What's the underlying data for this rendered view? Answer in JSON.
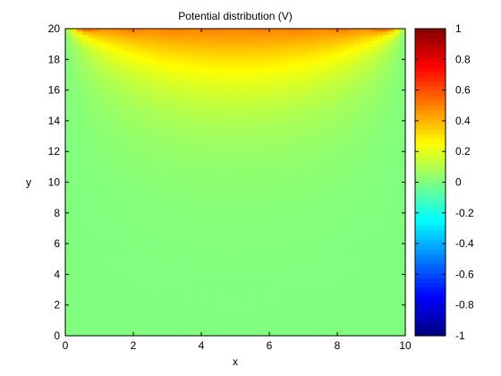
{
  "chart_data": {
    "type": "heatmap",
    "title": "Potential distribution (V)",
    "xlabel": "x",
    "ylabel": "y",
    "xlim": [
      0,
      10
    ],
    "ylim": [
      0,
      20
    ],
    "x_ticks": [
      0,
      2,
      4,
      6,
      8,
      10
    ],
    "y_ticks": [
      0,
      2,
      4,
      6,
      8,
      10,
      12,
      14,
      16,
      18,
      20
    ],
    "colorbar": {
      "colormap": "jet",
      "clim": [
        -1,
        1
      ],
      "ticks": [
        -1,
        -0.8,
        -0.6,
        -0.4,
        -0.2,
        0,
        0.2,
        0.4,
        0.6,
        0.8,
        1
      ]
    },
    "field": {
      "description_of_values": "Potential V(x,y) on a 10 x 20 domain: 0 on the left, right and bottom edges, about 0.5 V at the center of the top edge, decaying into the interior.",
      "top_edge_peak_value": 0.5,
      "boundary_value": 0
    }
  }
}
